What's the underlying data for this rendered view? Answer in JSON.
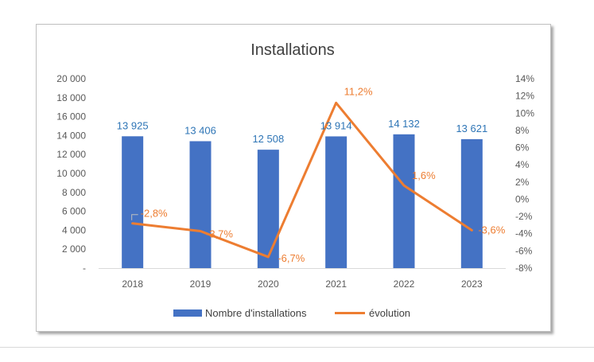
{
  "chart_data": {
    "type": "bar",
    "title": "Installations",
    "categories": [
      "2018",
      "2019",
      "2020",
      "2021",
      "2022",
      "2023"
    ],
    "series": [
      {
        "name": "Nombre d'installations",
        "type": "bar",
        "axis": "left",
        "color": "#4472c4",
        "values": [
          13925,
          13406,
          12508,
          13914,
          14132,
          13621
        ],
        "labels": [
          "13 925",
          "13 406",
          "12 508",
          "13 914",
          "14 132",
          "13 621"
        ],
        "label_color": "#2e75b6"
      },
      {
        "name": "évolution",
        "type": "line",
        "axis": "right",
        "color": "#ed7d31",
        "values": [
          -2.8,
          -3.7,
          -6.7,
          11.2,
          1.6,
          -3.6
        ],
        "labels": [
          "-2,8%",
          "-3,7%",
          "-6,7%",
          "11,2%",
          "1,6%",
          "-3,6%"
        ],
        "label_color": "#ed7d31"
      }
    ],
    "y_left": {
      "ylim": [
        0,
        20000
      ],
      "ticks": [
        0,
        2000,
        4000,
        6000,
        8000,
        10000,
        12000,
        14000,
        16000,
        18000,
        20000
      ],
      "tick_labels": [
        "-",
        "2 000",
        "4 000",
        "6 000",
        "8 000",
        "10 000",
        "12 000",
        "14 000",
        "16 000",
        "18 000",
        "20 000"
      ]
    },
    "y_right": {
      "ylim": [
        -8,
        14
      ],
      "ticks": [
        -8,
        -6,
        -4,
        -2,
        0,
        2,
        4,
        6,
        8,
        10,
        12,
        14
      ],
      "tick_labels": [
        "-8%",
        "-6%",
        "-4%",
        "-2%",
        "0%",
        "2%",
        "4%",
        "6%",
        "8%",
        "10%",
        "12%",
        "14%"
      ]
    },
    "grid": false,
    "legend_position": "bottom"
  }
}
